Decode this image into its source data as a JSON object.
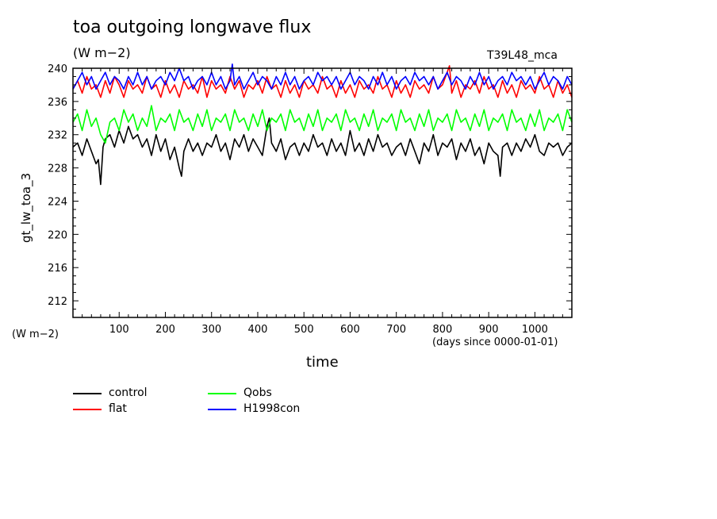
{
  "header": {
    "title": "toa outgoing longwave flux",
    "subtitle": "(W m−2)",
    "tag": "T39L48_mca"
  },
  "axes": {
    "ylabel": "gt_lw_toa_3",
    "yunit": "(W m−2)",
    "xlabel": "time",
    "xunit": "(days since 0000-01-01)"
  },
  "chart_data": {
    "type": "line",
    "title": "toa outgoing longwave flux",
    "ylabel": "gt_lw_toa_3",
    "xlabel": "time",
    "xlim": [
      0,
      1080
    ],
    "ylim": [
      210,
      240
    ],
    "x_ticks": [
      100,
      200,
      300,
      400,
      500,
      600,
      700,
      800,
      900,
      1000
    ],
    "y_ticks": [
      212,
      216,
      220,
      224,
      228,
      232,
      236,
      240
    ],
    "grid": false,
    "legend_placement": "below",
    "series": [
      {
        "name": "control",
        "color": "#000000",
        "x": [
          0,
          10,
          20,
          30,
          40,
          50,
          55,
          60,
          65,
          70,
          80,
          90,
          100,
          110,
          120,
          130,
          140,
          150,
          160,
          170,
          180,
          190,
          200,
          210,
          220,
          230,
          235,
          240,
          250,
          260,
          270,
          280,
          290,
          300,
          310,
          320,
          330,
          340,
          350,
          360,
          370,
          380,
          390,
          400,
          410,
          420,
          425,
          430,
          440,
          450,
          460,
          470,
          480,
          490,
          500,
          510,
          520,
          530,
          540,
          550,
          560,
          570,
          580,
          590,
          600,
          610,
          620,
          630,
          640,
          650,
          660,
          670,
          680,
          690,
          700,
          710,
          720,
          730,
          740,
          750,
          760,
          770,
          780,
          790,
          800,
          810,
          820,
          830,
          840,
          850,
          860,
          870,
          880,
          890,
          900,
          910,
          920,
          925,
          930,
          940,
          950,
          960,
          970,
          980,
          990,
          1000,
          1010,
          1020,
          1030,
          1040,
          1050,
          1060,
          1070,
          1080
        ],
        "values": [
          230.5,
          231,
          229.5,
          231.5,
          230,
          228.5,
          229,
          226,
          230.5,
          231.5,
          232,
          230.5,
          232.5,
          231,
          233,
          231.5,
          232,
          230.5,
          231.5,
          229.5,
          232,
          230,
          231.5,
          229,
          230.5,
          228,
          227,
          230,
          231.5,
          230,
          231,
          229.5,
          231,
          230.5,
          232,
          230,
          231,
          229,
          231.5,
          230.5,
          232,
          230,
          231.5,
          230.5,
          229.5,
          233,
          234,
          231,
          230,
          231.5,
          229,
          230.5,
          231,
          229.5,
          231,
          230,
          232,
          230.5,
          231,
          229.5,
          231.5,
          230,
          231,
          229.5,
          232.5,
          230,
          231,
          229.5,
          231.5,
          230,
          232,
          230.5,
          231,
          229.5,
          230.5,
          231,
          229.5,
          231.5,
          230,
          228.5,
          231,
          230,
          232,
          229.5,
          231,
          230.5,
          231.5,
          229,
          231,
          230,
          231.5,
          229.5,
          230.5,
          228.5,
          231,
          230,
          229.5,
          227,
          230.5,
          231,
          229.5,
          231,
          230,
          231.5,
          230.5,
          232,
          230,
          229.5,
          231,
          230.5,
          231,
          229.5,
          230.5,
          231
        ]
      },
      {
        "name": "flat",
        "color": "#ff0000",
        "x": [
          0,
          10,
          20,
          30,
          40,
          50,
          60,
          70,
          80,
          90,
          100,
          110,
          120,
          130,
          140,
          150,
          160,
          170,
          180,
          190,
          200,
          210,
          220,
          230,
          240,
          250,
          260,
          270,
          280,
          290,
          300,
          310,
          320,
          330,
          340,
          350,
          360,
          370,
          380,
          390,
          400,
          410,
          420,
          430,
          440,
          450,
          460,
          470,
          480,
          490,
          500,
          510,
          520,
          530,
          540,
          550,
          560,
          570,
          580,
          590,
          600,
          610,
          620,
          630,
          640,
          650,
          660,
          670,
          680,
          690,
          700,
          710,
          720,
          730,
          740,
          750,
          760,
          770,
          780,
          790,
          800,
          810,
          815,
          820,
          830,
          840,
          850,
          860,
          870,
          880,
          890,
          900,
          910,
          920,
          930,
          940,
          950,
          960,
          970,
          980,
          990,
          1000,
          1010,
          1020,
          1030,
          1040,
          1050,
          1060,
          1070,
          1080
        ],
        "values": [
          237.5,
          238.5,
          237,
          239,
          237.5,
          238,
          236.5,
          238.5,
          237,
          239,
          238,
          236.5,
          238.5,
          237.5,
          238,
          237,
          239,
          237.5,
          238,
          236.5,
          238.5,
          237,
          238,
          236.5,
          238.5,
          237.5,
          238,
          237,
          239,
          236.5,
          238.5,
          237.5,
          238,
          237,
          239,
          237.5,
          238.5,
          236.5,
          238,
          237.5,
          238.5,
          237,
          239,
          237.5,
          238,
          236.5,
          238.5,
          237,
          238,
          236.5,
          238.5,
          237.5,
          238,
          237,
          239,
          237.5,
          238,
          236.5,
          238.5,
          237,
          238,
          236.5,
          238.5,
          237.5,
          238,
          237,
          239,
          237.5,
          238,
          236.5,
          238.5,
          237,
          238,
          236.5,
          238.5,
          237.5,
          238,
          237,
          239,
          237.5,
          238,
          239.5,
          240.3,
          237,
          238.5,
          236.5,
          238,
          237.5,
          238.5,
          237,
          239,
          237.5,
          238,
          236.5,
          238.5,
          237,
          238,
          236.5,
          238.5,
          237.5,
          238,
          237,
          239,
          237.5,
          238,
          236.5,
          238.5,
          237,
          238,
          236.5
        ]
      },
      {
        "name": "Qobs",
        "color": "#00ff00",
        "x": [
          0,
          10,
          20,
          30,
          40,
          50,
          60,
          70,
          80,
          90,
          100,
          110,
          120,
          130,
          140,
          150,
          160,
          170,
          180,
          190,
          200,
          210,
          220,
          230,
          240,
          250,
          260,
          270,
          280,
          290,
          300,
          310,
          320,
          330,
          340,
          350,
          360,
          370,
          380,
          390,
          400,
          410,
          420,
          430,
          440,
          450,
          460,
          470,
          480,
          490,
          500,
          510,
          520,
          530,
          540,
          550,
          560,
          570,
          580,
          590,
          600,
          610,
          620,
          630,
          640,
          650,
          660,
          670,
          680,
          690,
          700,
          710,
          720,
          730,
          740,
          750,
          760,
          770,
          780,
          790,
          800,
          810,
          820,
          830,
          840,
          850,
          860,
          870,
          880,
          890,
          900,
          910,
          920,
          930,
          940,
          950,
          960,
          970,
          980,
          990,
          1000,
          1010,
          1020,
          1030,
          1040,
          1050,
          1060,
          1070,
          1080
        ],
        "values": [
          233.5,
          234.5,
          232.5,
          235,
          233,
          234,
          232,
          231,
          233.5,
          234,
          232.5,
          235,
          233.5,
          234.5,
          232.5,
          234,
          233,
          235.5,
          232.5,
          234,
          233.5,
          234.5,
          232.5,
          235,
          233.5,
          234,
          232.5,
          234.5,
          233,
          235,
          232.5,
          234,
          233.5,
          234.5,
          232.5,
          235,
          233.5,
          234,
          232.5,
          234.5,
          233,
          235,
          232.5,
          234,
          233.5,
          234.5,
          232.5,
          235,
          233.5,
          234,
          232.5,
          234.5,
          233,
          235,
          232.5,
          234,
          233.5,
          234.5,
          232.5,
          235,
          233.5,
          234,
          232.5,
          234.5,
          233,
          235,
          232.5,
          234,
          233.5,
          234.5,
          232.5,
          235,
          233.5,
          234,
          232.5,
          234.5,
          233,
          235,
          232.5,
          234,
          233.5,
          234.5,
          232.5,
          235,
          233.5,
          234,
          232.5,
          234.5,
          233,
          235,
          232.5,
          234,
          233.5,
          234.5,
          232.5,
          235,
          233.5,
          234,
          232.5,
          234.5,
          233,
          235,
          232.5,
          234,
          233.5,
          234.5,
          232.5,
          235,
          233.5
        ]
      },
      {
        "name": "H1998con",
        "color": "#0000ff",
        "x": [
          0,
          10,
          20,
          30,
          40,
          50,
          60,
          70,
          80,
          90,
          100,
          110,
          120,
          130,
          140,
          150,
          160,
          170,
          180,
          190,
          200,
          210,
          220,
          230,
          240,
          250,
          260,
          270,
          280,
          290,
          300,
          310,
          320,
          330,
          340,
          345,
          350,
          360,
          370,
          380,
          390,
          400,
          410,
          420,
          430,
          440,
          450,
          460,
          470,
          480,
          490,
          500,
          510,
          520,
          530,
          540,
          550,
          560,
          570,
          580,
          590,
          600,
          610,
          620,
          630,
          640,
          650,
          660,
          670,
          680,
          690,
          700,
          710,
          720,
          730,
          740,
          750,
          760,
          770,
          780,
          790,
          800,
          810,
          820,
          830,
          840,
          850,
          860,
          870,
          880,
          890,
          900,
          910,
          920,
          930,
          940,
          950,
          960,
          970,
          980,
          990,
          1000,
          1010,
          1020,
          1030,
          1040,
          1050,
          1060,
          1070,
          1080
        ],
        "values": [
          237.5,
          238.5,
          239.5,
          238,
          239,
          237.5,
          238.5,
          239.5,
          238,
          239,
          238.5,
          237.5,
          239,
          238,
          239.5,
          238,
          239,
          237.5,
          238.5,
          239,
          238,
          239.5,
          238.5,
          240,
          238.5,
          239,
          237.5,
          238.5,
          239,
          238,
          239.5,
          238,
          239,
          237.5,
          238.5,
          240.5,
          238,
          239,
          237.5,
          238.5,
          239.5,
          238,
          239,
          238.5,
          237.5,
          239,
          238,
          239.5,
          238,
          239,
          237.5,
          238.5,
          239,
          238,
          239.5,
          238.5,
          239,
          238,
          239,
          237.5,
          238.5,
          239.5,
          238,
          239,
          238.5,
          237.5,
          239,
          238,
          239.5,
          238,
          239,
          237.5,
          238.5,
          239,
          238,
          239.5,
          238.5,
          239,
          238,
          239,
          237.5,
          238.5,
          239.5,
          238,
          239,
          238.5,
          237.5,
          239,
          238,
          239.5,
          238,
          239,
          237.5,
          238.5,
          239,
          238,
          239.5,
          238.5,
          239,
          238,
          239,
          237.5,
          238.5,
          239.5,
          238,
          239,
          238.5,
          237.5,
          239,
          238
        ]
      }
    ]
  }
}
